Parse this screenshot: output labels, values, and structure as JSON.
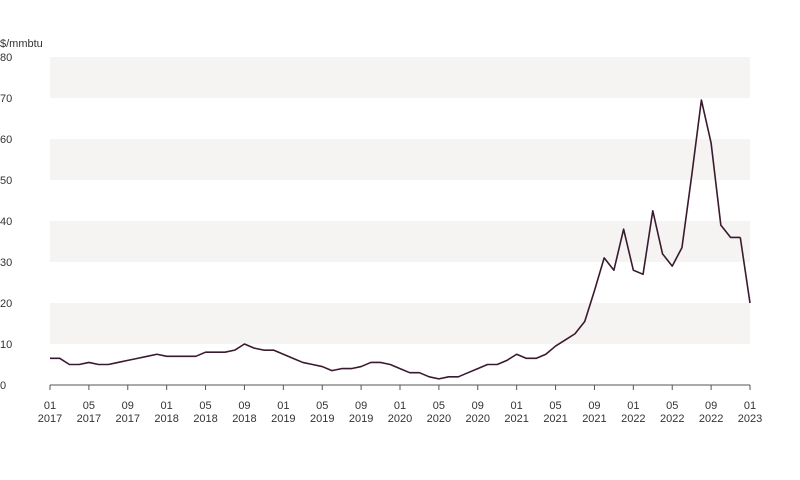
{
  "chart_data": {
    "type": "line",
    "ylabel": "$/mmbtu",
    "ylim": [
      0,
      80
    ],
    "y_ticks": [
      0,
      10,
      20,
      30,
      40,
      50,
      60,
      70,
      80
    ],
    "xlim": [
      "2017-01",
      "2023-01"
    ],
    "x_ticks": [
      {
        "month": "01",
        "year": "2017"
      },
      {
        "month": "05",
        "year": "2017"
      },
      {
        "month": "09",
        "year": "2017"
      },
      {
        "month": "01",
        "year": "2018"
      },
      {
        "month": "05",
        "year": "2018"
      },
      {
        "month": "09",
        "year": "2018"
      },
      {
        "month": "01",
        "year": "2019"
      },
      {
        "month": "05",
        "year": "2019"
      },
      {
        "month": "09",
        "year": "2019"
      },
      {
        "month": "01",
        "year": "2020"
      },
      {
        "month": "05",
        "year": "2020"
      },
      {
        "month": "09",
        "year": "2020"
      },
      {
        "month": "01",
        "year": "2021"
      },
      {
        "month": "05",
        "year": "2021"
      },
      {
        "month": "09",
        "year": "2021"
      },
      {
        "month": "01",
        "year": "2022"
      },
      {
        "month": "05",
        "year": "2022"
      },
      {
        "month": "09",
        "year": "2022"
      },
      {
        "month": "01",
        "year": "2023"
      }
    ],
    "grid": "alternating horizontal bands",
    "colors": {
      "line": "#3a1a2e",
      "band": "#f5f4f2",
      "axis": "#555555",
      "text": "#333333"
    },
    "series": [
      {
        "x": [
          "2017-01",
          "2017-02",
          "2017-03",
          "2017-04",
          "2017-05",
          "2017-06",
          "2017-07",
          "2017-08",
          "2017-09",
          "2017-10",
          "2017-11",
          "2017-12",
          "2018-01",
          "2018-02",
          "2018-03",
          "2018-04",
          "2018-05",
          "2018-06",
          "2018-07",
          "2018-08",
          "2018-09",
          "2018-10",
          "2018-11",
          "2018-12",
          "2019-01",
          "2019-02",
          "2019-03",
          "2019-04",
          "2019-05",
          "2019-06",
          "2019-07",
          "2019-08",
          "2019-09",
          "2019-10",
          "2019-11",
          "2019-12",
          "2020-01",
          "2020-02",
          "2020-03",
          "2020-04",
          "2020-05",
          "2020-06",
          "2020-07",
          "2020-08",
          "2020-09",
          "2020-10",
          "2020-11",
          "2020-12",
          "2021-01",
          "2021-02",
          "2021-03",
          "2021-04",
          "2021-05",
          "2021-06",
          "2021-07",
          "2021-08",
          "2021-09",
          "2021-10",
          "2021-11",
          "2021-12",
          "2022-01",
          "2022-02",
          "2022-03",
          "2022-04",
          "2022-05",
          "2022-06",
          "2022-07",
          "2022-08",
          "2022-09",
          "2022-10",
          "2022-11",
          "2022-12"
        ],
        "values": [
          6.5,
          6.5,
          5,
          5,
          5.5,
          5,
          5,
          5.5,
          6,
          6.5,
          7,
          7.5,
          7,
          7,
          7,
          7,
          8,
          8,
          8,
          8.5,
          10,
          9,
          8.5,
          8.5,
          7.5,
          6.5,
          5.5,
          5,
          4.5,
          3.5,
          4,
          4,
          4.5,
          5.5,
          5.5,
          5,
          4,
          3,
          3,
          2,
          1.5,
          2,
          2,
          3,
          4,
          5,
          5,
          6,
          7.5,
          6.5,
          6.5,
          7.5,
          9.5,
          11,
          12.5,
          15.5,
          23,
          31,
          28,
          38,
          28,
          27,
          42.5,
          32,
          29,
          33.5,
          51,
          69.5,
          59,
          39,
          36,
          36
        ]
      },
      {
        "x": [
          "2022-12",
          "2023-01"
        ],
        "values": [
          36,
          20
        ]
      }
    ]
  }
}
